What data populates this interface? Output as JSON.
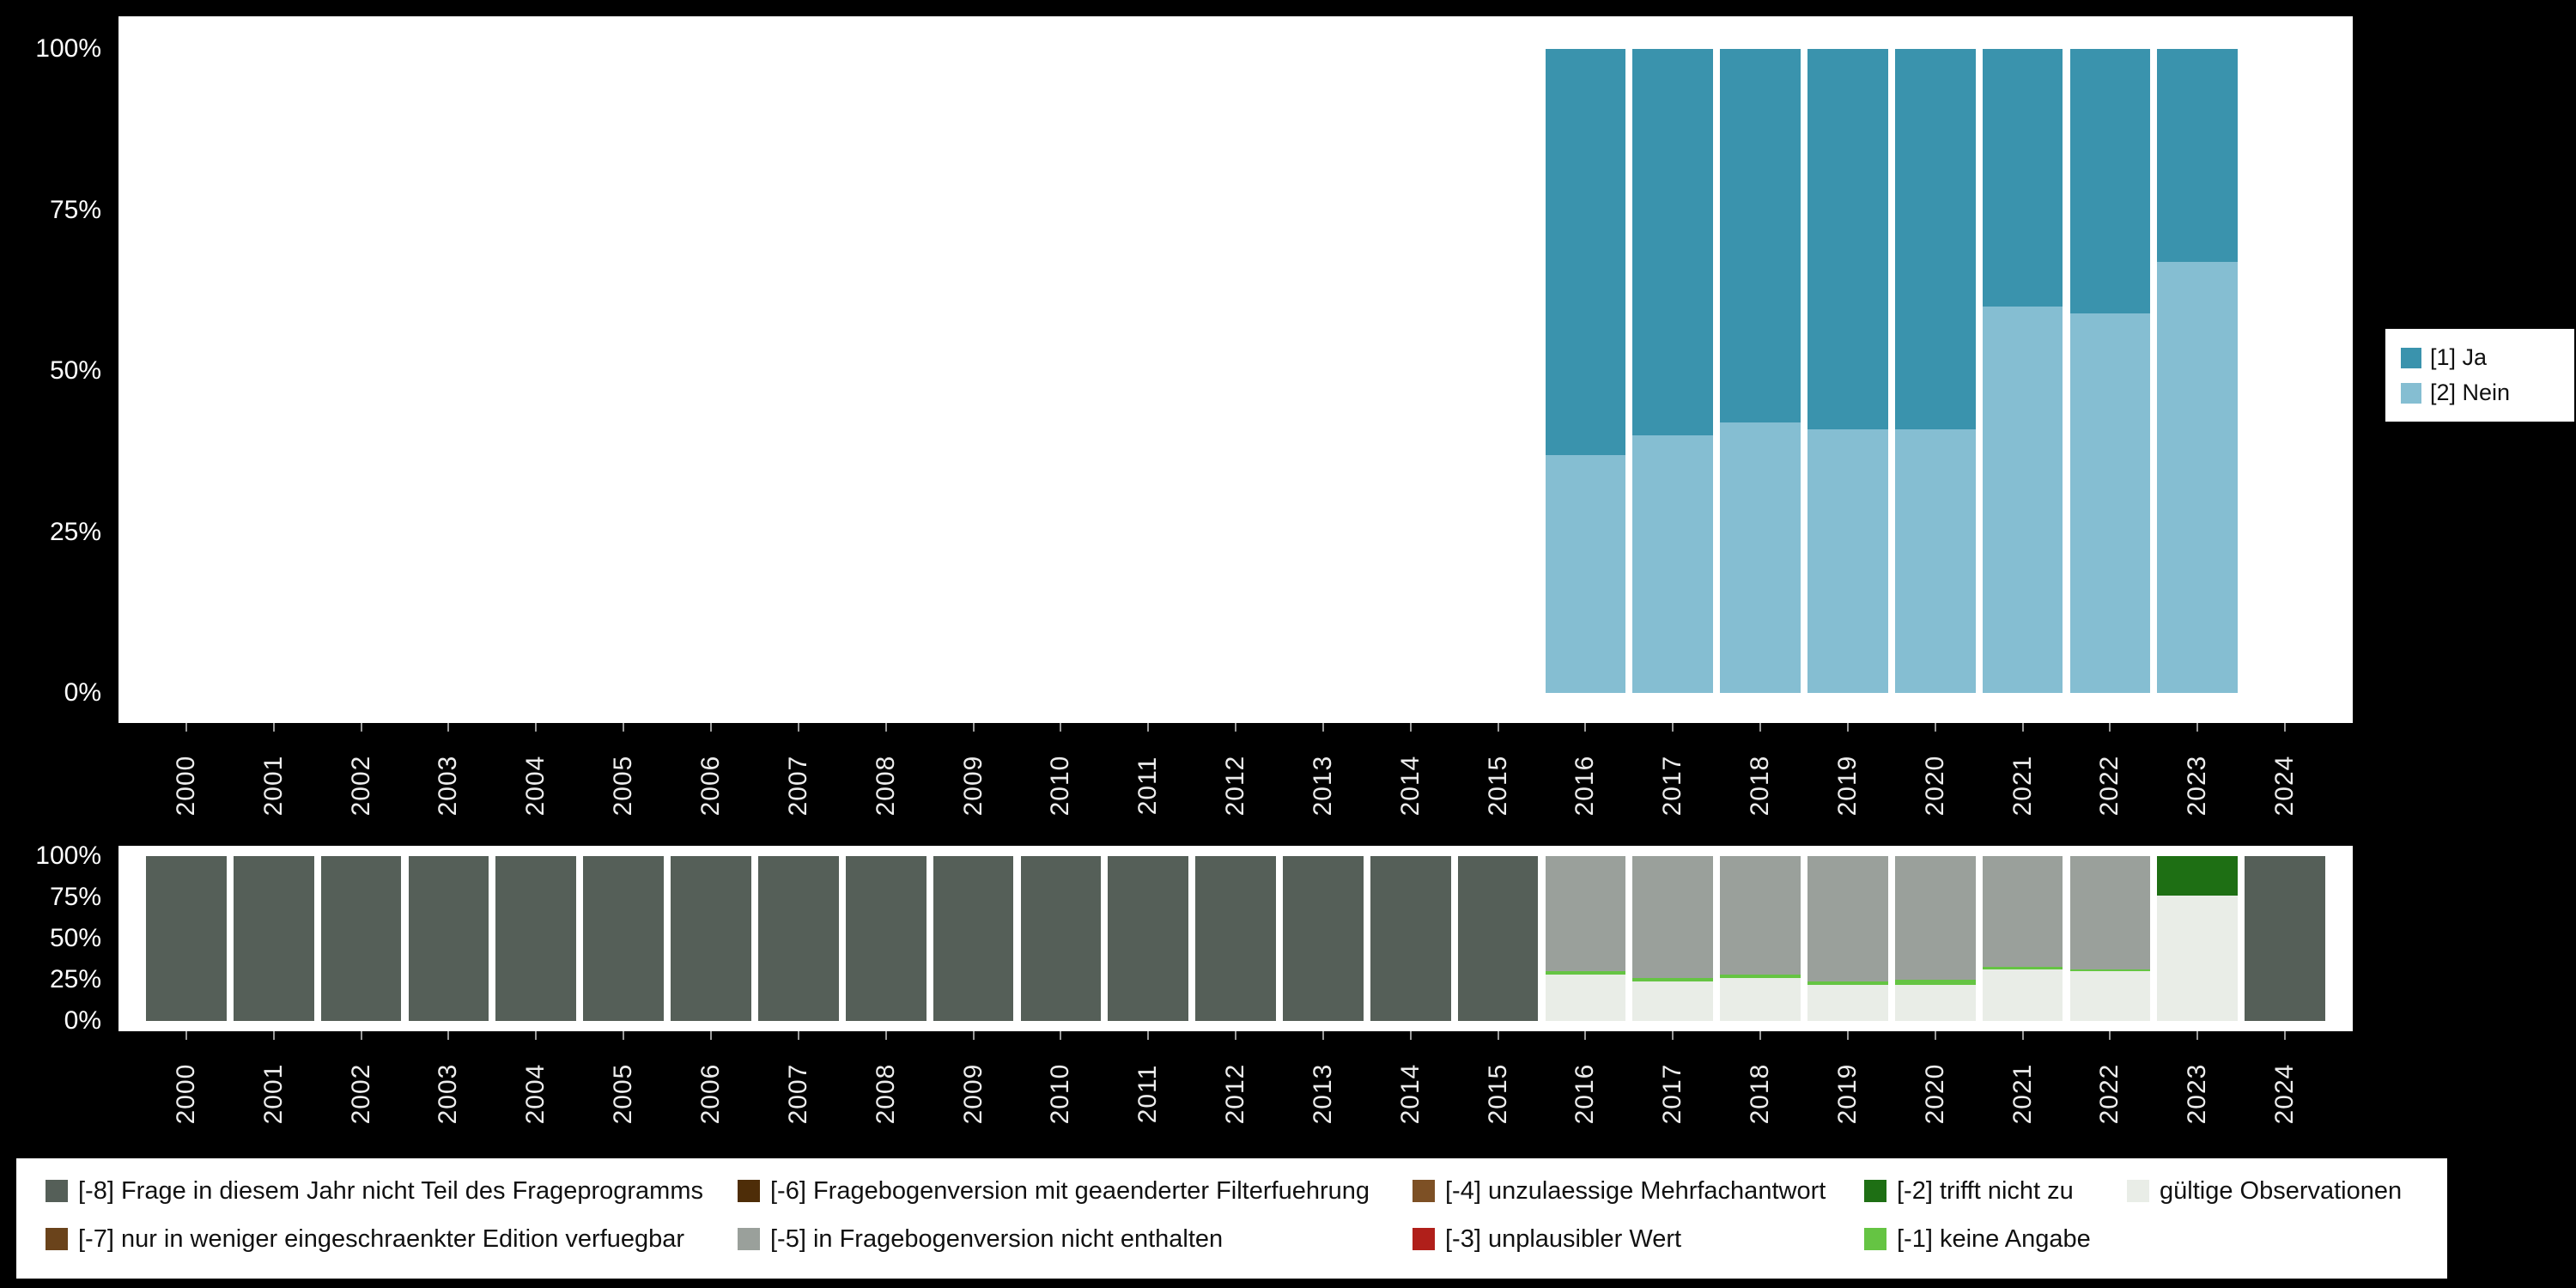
{
  "page": {
    "background": "#000000",
    "panel_background": "#ffffff",
    "axis_text_color": "#ffffff"
  },
  "years": [
    "2000",
    "2001",
    "2002",
    "2003",
    "2004",
    "2005",
    "2006",
    "2007",
    "2008",
    "2009",
    "2010",
    "2011",
    "2012",
    "2013",
    "2014",
    "2015",
    "2016",
    "2017",
    "2018",
    "2019",
    "2020",
    "2021",
    "2022",
    "2023",
    "2024"
  ],
  "chart_data": [
    {
      "id": "answers",
      "type": "bar",
      "stacked": true,
      "title": "",
      "xlabel": "",
      "ylabel": "",
      "ylim": [
        0,
        100
      ],
      "grid": false,
      "legend_position": "right",
      "yticks": [
        "100%",
        "75%",
        "50%",
        "25%",
        "0%"
      ],
      "categories": [
        "2000",
        "2001",
        "2002",
        "2003",
        "2004",
        "2005",
        "2006",
        "2007",
        "2008",
        "2009",
        "2010",
        "2011",
        "2012",
        "2013",
        "2014",
        "2015",
        "2016",
        "2017",
        "2018",
        "2019",
        "2020",
        "2021",
        "2022",
        "2023",
        "2024"
      ],
      "series": [
        {
          "name": "[1] Ja",
          "color": "#3a93ad",
          "values": [
            null,
            null,
            null,
            null,
            null,
            null,
            null,
            null,
            null,
            null,
            null,
            null,
            null,
            null,
            null,
            null,
            63,
            60,
            58,
            59,
            59,
            40,
            41,
            33,
            null
          ]
        },
        {
          "name": "[2] Nein",
          "color": "#85bed2",
          "values": [
            null,
            null,
            null,
            null,
            null,
            null,
            null,
            null,
            null,
            null,
            null,
            null,
            null,
            null,
            null,
            null,
            37,
            40,
            42,
            41,
            41,
            60,
            59,
            67,
            null
          ]
        }
      ]
    },
    {
      "id": "missings",
      "type": "bar",
      "stacked": true,
      "title": "",
      "xlabel": "",
      "ylabel": "",
      "ylim": [
        0,
        100
      ],
      "grid": false,
      "legend_position": "bottom",
      "yticks": [
        "100%",
        "75%",
        "50%",
        "25%",
        "0%"
      ],
      "categories": [
        "2000",
        "2001",
        "2002",
        "2003",
        "2004",
        "2005",
        "2006",
        "2007",
        "2008",
        "2009",
        "2010",
        "2011",
        "2012",
        "2013",
        "2014",
        "2015",
        "2016",
        "2017",
        "2018",
        "2019",
        "2020",
        "2021",
        "2022",
        "2023",
        "2024"
      ],
      "series": [
        {
          "name": "[-8] Frage in diesem Jahr nicht Teil des Frageprogramms",
          "color": "#555f58",
          "values": [
            100,
            100,
            100,
            100,
            100,
            100,
            100,
            100,
            100,
            100,
            100,
            100,
            100,
            100,
            100,
            100,
            0,
            0,
            0,
            0,
            0,
            0,
            0,
            0,
            100
          ]
        },
        {
          "name": "[-7] nur in weniger eingeschraenkter Edition verfuegbar",
          "color": "#6a431b",
          "values": [
            0,
            0,
            0,
            0,
            0,
            0,
            0,
            0,
            0,
            0,
            0,
            0,
            0,
            0,
            0,
            0,
            0,
            0,
            0,
            0,
            0,
            0,
            0,
            0,
            0
          ]
        },
        {
          "name": "[-6] Fragebogenversion mit geaenderter Filterfuehrung",
          "color": "#4e2d08",
          "values": [
            0,
            0,
            0,
            0,
            0,
            0,
            0,
            0,
            0,
            0,
            0,
            0,
            0,
            0,
            0,
            0,
            0,
            0,
            0,
            0,
            0,
            0,
            0,
            0,
            0
          ]
        },
        {
          "name": "[-5] in Fragebogenversion nicht enthalten",
          "color": "#9aa09b",
          "values": [
            0,
            0,
            0,
            0,
            0,
            0,
            0,
            0,
            0,
            0,
            0,
            0,
            0,
            0,
            0,
            0,
            70,
            74,
            72,
            76,
            75,
            67,
            69,
            0,
            0
          ]
        },
        {
          "name": "[-4] unzulaessige Mehrfachantwort",
          "color": "#7d5025",
          "values": [
            0,
            0,
            0,
            0,
            0,
            0,
            0,
            0,
            0,
            0,
            0,
            0,
            0,
            0,
            0,
            0,
            0,
            0,
            0,
            0,
            0,
            0,
            0,
            0,
            0
          ]
        },
        {
          "name": "[-3] unplausibler Wert",
          "color": "#b01f1a",
          "values": [
            0,
            0,
            0,
            0,
            0,
            0,
            0,
            0,
            0,
            0,
            0,
            0,
            0,
            0,
            0,
            0,
            0,
            0,
            0,
            0,
            0,
            0,
            0,
            0,
            0
          ]
        },
        {
          "name": "[-2] trifft nicht zu",
          "color": "#1e6f14",
          "values": [
            0,
            0,
            0,
            0,
            0,
            0,
            0,
            0,
            0,
            0,
            0,
            0,
            0,
            0,
            0,
            0,
            0,
            0,
            0,
            0,
            0,
            0,
            0,
            24,
            0
          ]
        },
        {
          "name": "[-1] keine Angabe",
          "color": "#65c443",
          "values": [
            0,
            0,
            0,
            0,
            0,
            0,
            0,
            0,
            0,
            0,
            0,
            0,
            0,
            0,
            0,
            0,
            2,
            2,
            2,
            2,
            3,
            2,
            1,
            0,
            0
          ]
        },
        {
          "name": "gültige Observationen",
          "color": "#e9ede7",
          "values": [
            0,
            0,
            0,
            0,
            0,
            0,
            0,
            0,
            0,
            0,
            0,
            0,
            0,
            0,
            0,
            0,
            28,
            24,
            26,
            22,
            22,
            31,
            30,
            76,
            0
          ]
        }
      ]
    }
  ],
  "answers_legend": {
    "items": [
      {
        "label": "[1] Ja",
        "color": "#3a93ad"
      },
      {
        "label": "[2] Nein",
        "color": "#85bed2"
      }
    ]
  },
  "missings_legend": {
    "rows": [
      [
        {
          "label": "[-8] Frage in diesem Jahr nicht Teil des Frageprogramms",
          "color": "#555f58"
        },
        {
          "label": "[-6] Fragebogenversion mit geaenderter Filterfuehrung",
          "color": "#4e2d08"
        },
        {
          "label": "[-4] unzulaessige Mehrfachantwort",
          "color": "#7d5025"
        },
        {
          "label": "[-2] trifft nicht zu",
          "color": "#1e6f14"
        },
        {
          "label": "gültige Observationen",
          "color": "#e9ede7"
        }
      ],
      [
        {
          "label": "[-7] nur in weniger eingeschraenkter Edition verfuegbar",
          "color": "#6a431b"
        },
        {
          "label": "[-5] in Fragebogenversion nicht enthalten",
          "color": "#9aa09b"
        },
        {
          "label": "[-3] unplausibler Wert",
          "color": "#b01f1a"
        },
        {
          "label": "[-1] keine Angabe",
          "color": "#65c443"
        }
      ]
    ]
  }
}
